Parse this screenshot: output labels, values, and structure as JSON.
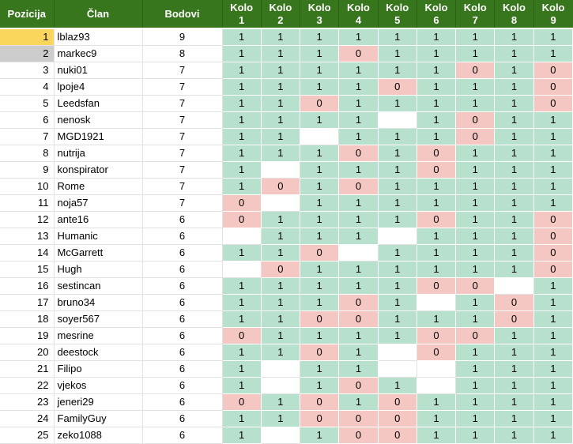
{
  "colors": {
    "header_bg": "#38761d",
    "header_text": "#ffffff",
    "win_bg": "#b7e1cd",
    "loss_bg": "#f4c7c3",
    "first_place_bg": "#fbd65c",
    "second_place_bg": "#cccccc",
    "gridline": "#e2e2e2"
  },
  "table": {
    "headers": {
      "pozicija": "Pozicija",
      "clan": "Član",
      "bodovi": "Bodovi",
      "kolo_label": "Kolo",
      "rounds": [
        "1",
        "2",
        "3",
        "4",
        "5",
        "6",
        "7",
        "8",
        "9"
      ]
    },
    "rows": [
      {
        "pozicija": "1",
        "clan": "lblaz93",
        "bodovi": "9",
        "highlight": "gold",
        "kolo": [
          "1",
          "1",
          "1",
          "1",
          "1",
          "1",
          "1",
          "1",
          "1"
        ]
      },
      {
        "pozicija": "2",
        "clan": "markec9",
        "bodovi": "8",
        "highlight": "gray",
        "kolo": [
          "1",
          "1",
          "1",
          "0",
          "1",
          "1",
          "1",
          "1",
          "1"
        ]
      },
      {
        "pozicija": "3",
        "clan": "nuki01",
        "bodovi": "7",
        "highlight": "",
        "kolo": [
          "1",
          "1",
          "1",
          "1",
          "1",
          "1",
          "0",
          "1",
          "0"
        ]
      },
      {
        "pozicija": "4",
        "clan": "lpoje4",
        "bodovi": "7",
        "highlight": "",
        "kolo": [
          "1",
          "1",
          "1",
          "1",
          "0",
          "1",
          "1",
          "1",
          "0"
        ]
      },
      {
        "pozicija": "5",
        "clan": "Leedsfan",
        "bodovi": "7",
        "highlight": "",
        "kolo": [
          "1",
          "1",
          "0",
          "1",
          "1",
          "1",
          "1",
          "1",
          "0"
        ]
      },
      {
        "pozicija": "6",
        "clan": "nenosk",
        "bodovi": "7",
        "highlight": "",
        "kolo": [
          "1",
          "1",
          "1",
          "1",
          "",
          "1",
          "0",
          "1",
          "1"
        ]
      },
      {
        "pozicija": "7",
        "clan": "MGD1921",
        "bodovi": "7",
        "highlight": "",
        "kolo": [
          "1",
          "1",
          "",
          "1",
          "1",
          "1",
          "0",
          "1",
          "1"
        ]
      },
      {
        "pozicija": "8",
        "clan": "nutrija",
        "bodovi": "7",
        "highlight": "",
        "kolo": [
          "1",
          "1",
          "1",
          "0",
          "1",
          "0",
          "1",
          "1",
          "1"
        ]
      },
      {
        "pozicija": "9",
        "clan": "konspirator",
        "bodovi": "7",
        "highlight": "",
        "kolo": [
          "1",
          "",
          "1",
          "1",
          "1",
          "0",
          "1",
          "1",
          "1"
        ]
      },
      {
        "pozicija": "10",
        "clan": "Rome",
        "bodovi": "7",
        "highlight": "",
        "kolo": [
          "1",
          "0",
          "1",
          "0",
          "1",
          "1",
          "1",
          "1",
          "1"
        ]
      },
      {
        "pozicija": "11",
        "clan": "noja57",
        "bodovi": "7",
        "highlight": "",
        "kolo": [
          "0",
          "",
          "1",
          "1",
          "1",
          "1",
          "1",
          "1",
          "1"
        ]
      },
      {
        "pozicija": "12",
        "clan": "ante16",
        "bodovi": "6",
        "highlight": "",
        "kolo": [
          "0",
          "1",
          "1",
          "1",
          "1",
          "0",
          "1",
          "1",
          "0"
        ]
      },
      {
        "pozicija": "13",
        "clan": "Humanic",
        "bodovi": "6",
        "highlight": "",
        "kolo": [
          "",
          "1",
          "1",
          "1",
          "",
          "1",
          "1",
          "1",
          "0"
        ]
      },
      {
        "pozicija": "14",
        "clan": "McGarrett",
        "bodovi": "6",
        "highlight": "",
        "kolo": [
          "1",
          "1",
          "0",
          "",
          "1",
          "1",
          "1",
          "1",
          "0"
        ]
      },
      {
        "pozicija": "15",
        "clan": "Hugh",
        "bodovi": "6",
        "highlight": "",
        "kolo": [
          "",
          "0",
          "1",
          "1",
          "1",
          "1",
          "1",
          "1",
          "0"
        ]
      },
      {
        "pozicija": "16",
        "clan": "sestincan",
        "bodovi": "6",
        "highlight": "",
        "kolo": [
          "1",
          "1",
          "1",
          "1",
          "1",
          "0",
          "0",
          "",
          "1"
        ]
      },
      {
        "pozicija": "17",
        "clan": "bruno34",
        "bodovi": "6",
        "highlight": "",
        "kolo": [
          "1",
          "1",
          "1",
          "0",
          "1",
          "",
          "1",
          "0",
          "1"
        ]
      },
      {
        "pozicija": "18",
        "clan": "soyer567",
        "bodovi": "6",
        "highlight": "",
        "kolo": [
          "1",
          "1",
          "0",
          "0",
          "1",
          "1",
          "1",
          "0",
          "1"
        ]
      },
      {
        "pozicija": "19",
        "clan": "mesrine",
        "bodovi": "6",
        "highlight": "",
        "kolo": [
          "0",
          "1",
          "1",
          "1",
          "1",
          "0",
          "0",
          "1",
          "1"
        ]
      },
      {
        "pozicija": "20",
        "clan": "deestock",
        "bodovi": "6",
        "highlight": "",
        "kolo": [
          "1",
          "1",
          "0",
          "1",
          "",
          "0",
          "1",
          "1",
          "1"
        ]
      },
      {
        "pozicija": "21",
        "clan": "Filipo",
        "bodovi": "6",
        "highlight": "",
        "kolo": [
          "1",
          "",
          "1",
          "1",
          "",
          "",
          "1",
          "1",
          "1"
        ]
      },
      {
        "pozicija": "22",
        "clan": "vjekos",
        "bodovi": "6",
        "highlight": "",
        "kolo": [
          "1",
          "",
          "1",
          "0",
          "1",
          "",
          "1",
          "1",
          "1"
        ]
      },
      {
        "pozicija": "23",
        "clan": "jeneri29",
        "bodovi": "6",
        "highlight": "",
        "kolo": [
          "0",
          "1",
          "0",
          "1",
          "0",
          "1",
          "1",
          "1",
          "1"
        ]
      },
      {
        "pozicija": "24",
        "clan": "FamilyGuy",
        "bodovi": "6",
        "highlight": "",
        "kolo": [
          "1",
          "1",
          "0",
          "0",
          "0",
          "1",
          "1",
          "1",
          "1"
        ]
      },
      {
        "pozicija": "25",
        "clan": "zeko1088",
        "bodovi": "6",
        "highlight": "",
        "kolo": [
          "1",
          "",
          "1",
          "0",
          "0",
          "1",
          "1",
          "1",
          "1"
        ]
      }
    ]
  }
}
